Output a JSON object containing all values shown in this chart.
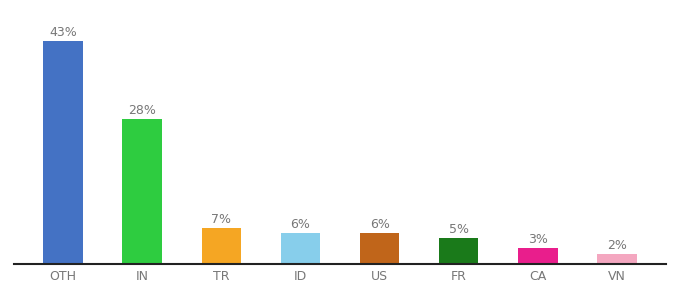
{
  "categories": [
    "OTH",
    "IN",
    "TR",
    "ID",
    "US",
    "FR",
    "CA",
    "VN"
  ],
  "values": [
    43,
    28,
    7,
    6,
    6,
    5,
    3,
    2
  ],
  "bar_colors": [
    "#4472c4",
    "#2ecc40",
    "#f5a623",
    "#87ceeb",
    "#c0651a",
    "#1a7a1a",
    "#e91e8c",
    "#f4a7c0"
  ],
  "labels": [
    "43%",
    "28%",
    "7%",
    "6%",
    "6%",
    "5%",
    "3%",
    "2%"
  ],
  "ylim": [
    0,
    48
  ],
  "background_color": "#ffffff",
  "label_fontsize": 9,
  "tick_fontsize": 9,
  "bar_width": 0.5
}
